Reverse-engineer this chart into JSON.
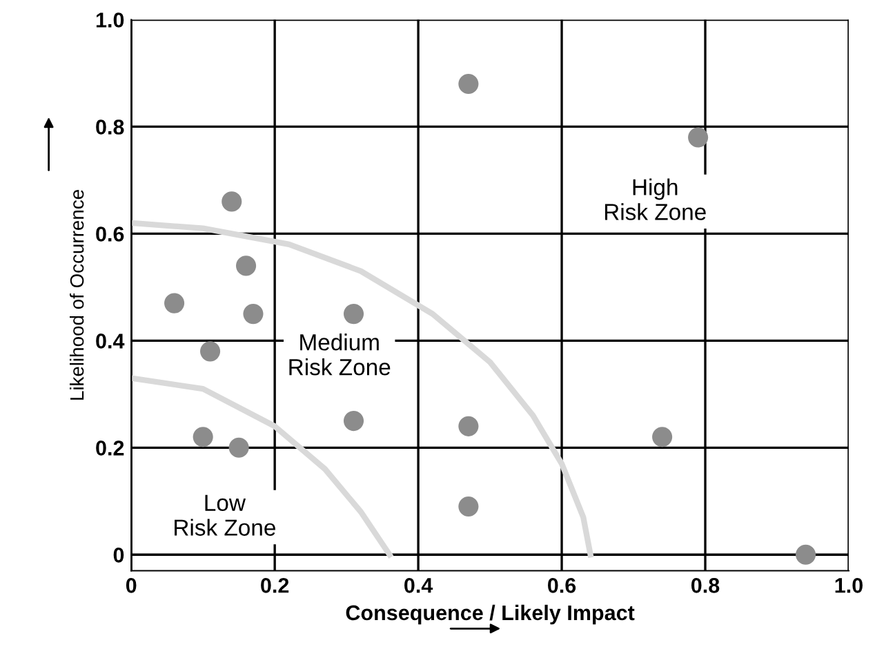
{
  "chart_data": {
    "type": "scatter",
    "xlabel": "Consequence / Likely Impact",
    "ylabel": "Likelihood of Occurrence",
    "series": [
      {
        "marker": "circle",
        "color": "#8c8c8c",
        "x": [
          0.47,
          0.79,
          0.14,
          0.16,
          0.06,
          0.17,
          0.31,
          0.11,
          0.31,
          0.47,
          0.1,
          0.15,
          0.74,
          0.47,
          0.94
        ],
        "values": [
          0.88,
          0.78,
          0.66,
          0.54,
          0.47,
          0.45,
          0.45,
          0.38,
          0.25,
          0.24,
          0.22,
          0.2,
          0.22,
          0.09,
          0.0
        ]
      },
      {
        "type": "line",
        "color": "#d9d9d9",
        "x": [
          0,
          0.1,
          0.2,
          0.27,
          0.32,
          0.35,
          0.36
        ],
        "values": [
          0.33,
          0.31,
          0.24,
          0.16,
          0.08,
          0.02,
          0
        ]
      },
      {
        "type": "line",
        "color": "#d9d9d9",
        "x": [
          0,
          0.1,
          0.22,
          0.32,
          0.42,
          0.5,
          0.56,
          0.6,
          0.63,
          0.64
        ],
        "values": [
          0.62,
          0.61,
          0.58,
          0.53,
          0.45,
          0.36,
          0.26,
          0.17,
          0.07,
          0
        ]
      }
    ],
    "annotations": [
      "High\nRisk Zone",
      "Medium\nRisk Zone",
      "Low\nRisk Zone"
    ],
    "xlim": [
      0,
      1.0
    ],
    "ylim": [
      -0.03,
      1.0
    ],
    "xticks": [
      0,
      0.2,
      0.4,
      0.6,
      0.8,
      {
        "value": 1.0,
        "label": "1.0"
      }
    ],
    "yticks": [
      0,
      0.2,
      0.4,
      0.6,
      0.8,
      {
        "value": 1.0,
        "label": "1.0"
      }
    ],
    "grid": true
  }
}
